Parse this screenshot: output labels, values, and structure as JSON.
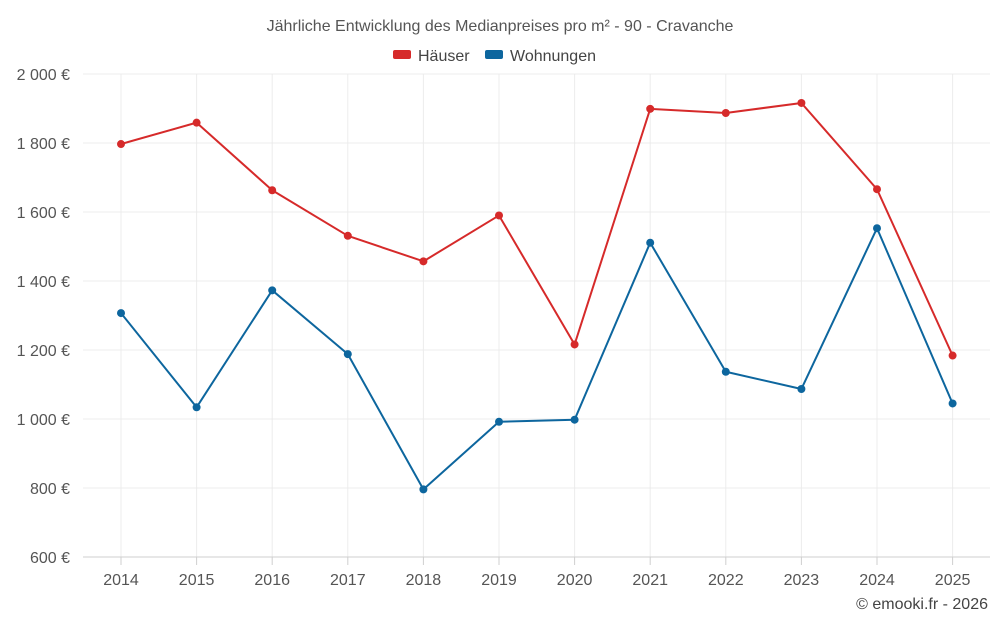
{
  "chart_data": {
    "type": "line",
    "title": "Jährliche Entwicklung des Medianpreises pro m² - 90 - Cravanche",
    "categories": [
      "2014",
      "2015",
      "2016",
      "2017",
      "2018",
      "2019",
      "2020",
      "2021",
      "2022",
      "2023",
      "2024",
      "2025"
    ],
    "series": [
      {
        "name": "Häuser",
        "color": "#d62a2a",
        "values": [
          1797,
          1859,
          1663,
          1531,
          1457,
          1590,
          1216,
          1899,
          1887,
          1916,
          1666,
          1184
        ]
      },
      {
        "name": "Wohnungen",
        "color": "#0d669e",
        "values": [
          1307,
          1034,
          1373,
          1188,
          796,
          992,
          998,
          1511,
          1137,
          1087,
          1553,
          1045
        ]
      }
    ],
    "y_ticks": [
      600,
      800,
      1000,
      1200,
      1400,
      1600,
      1800,
      2000
    ],
    "y_tick_labels": [
      "600 €",
      "800 €",
      "1 000 €",
      "1 200 €",
      "1 400 €",
      "1 600 €",
      "1 800 €",
      "2 000 €"
    ],
    "ylim": [
      600,
      2000
    ],
    "xlabel": "",
    "ylabel": "",
    "grid": true,
    "legend_position": "top-center",
    "credit": "© emooki.fr - 2026"
  }
}
